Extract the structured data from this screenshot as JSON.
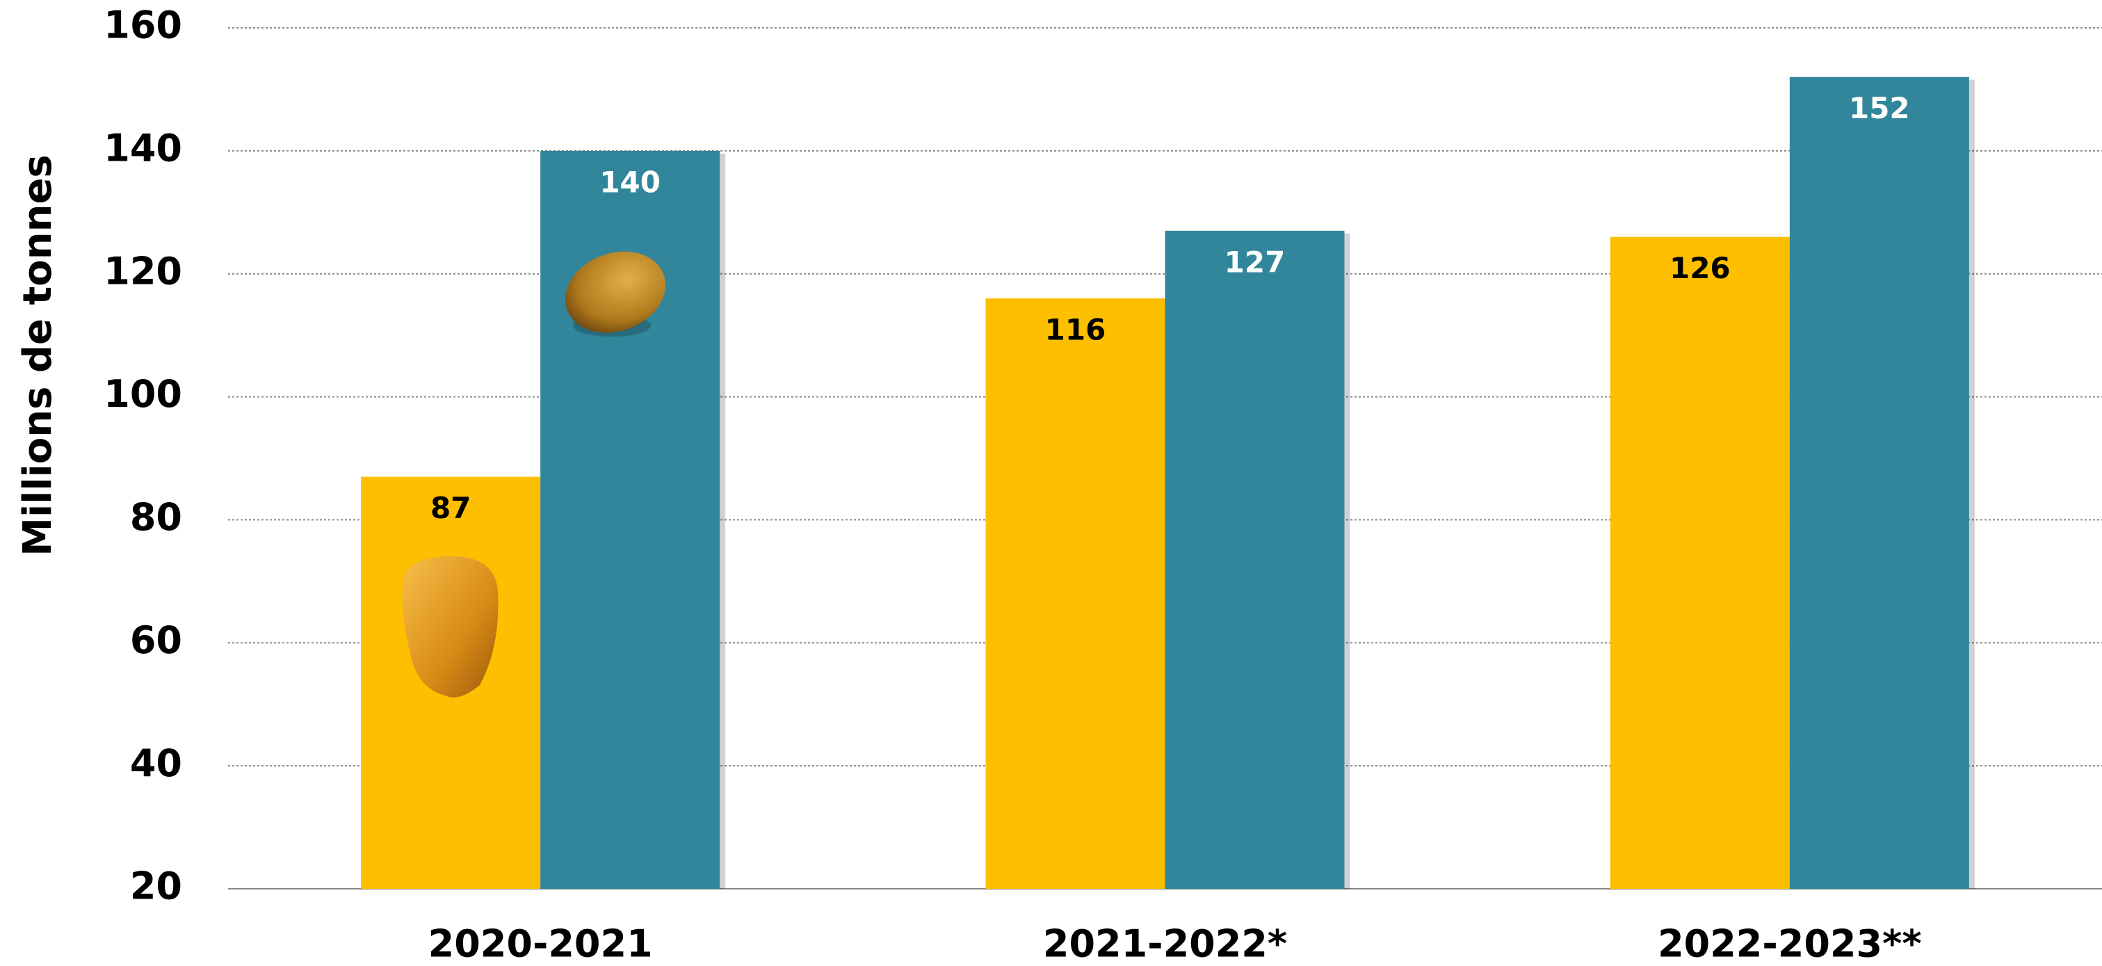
{
  "chart_data": {
    "type": "bar",
    "y_label": "Millions de tonnes",
    "categories": [
      "2020-2021",
      "2021-2022*",
      "2022-2023**"
    ],
    "series": [
      {
        "color": "#fdbf00",
        "label_color": "#000000",
        "values": [
          87,
          116,
          126
        ]
      },
      {
        "color": "#31869b",
        "label_color": "#ffffff",
        "values": [
          140,
          127,
          152
        ]
      }
    ],
    "ylim": [
      20,
      160
    ],
    "yticks": [
      20,
      40,
      60,
      80,
      100,
      120,
      140,
      160
    ],
    "grid": true
  }
}
